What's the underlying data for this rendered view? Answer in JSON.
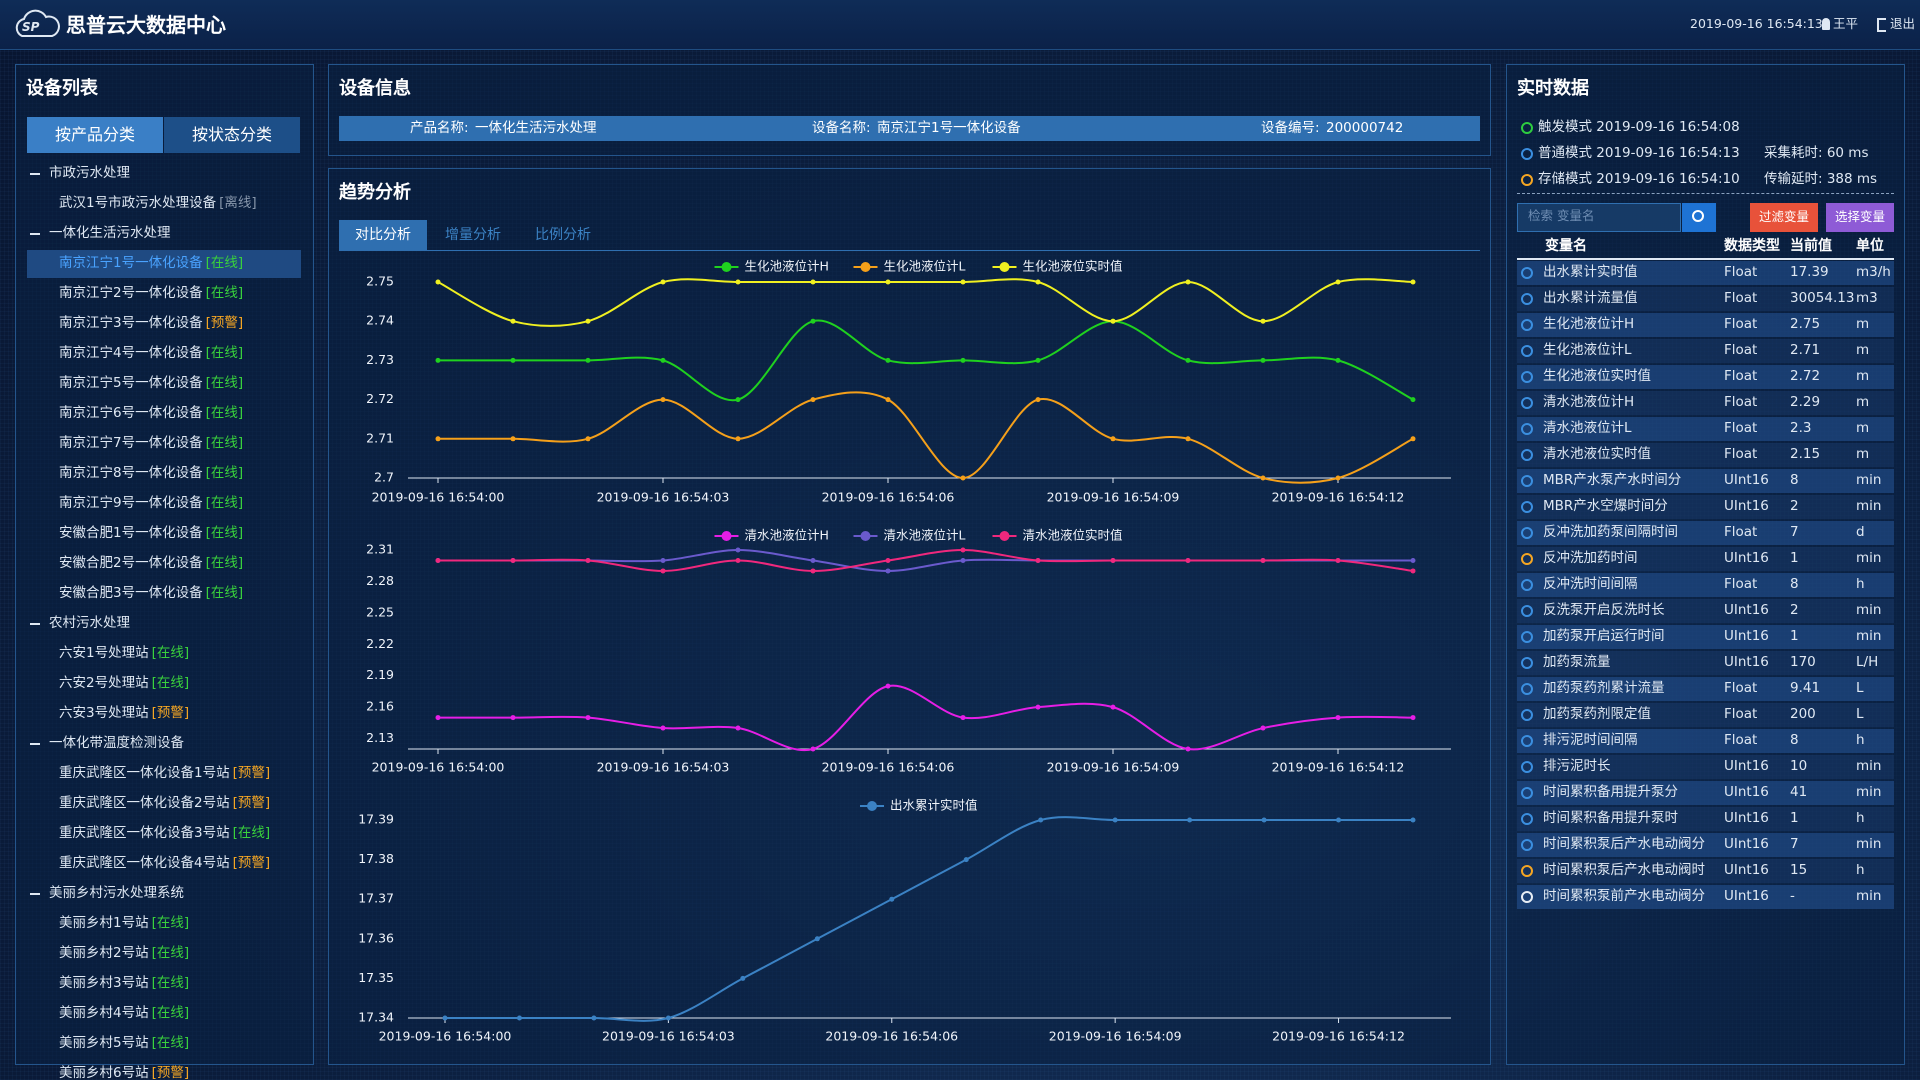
{
  "header": {
    "logo": "SP",
    "title": "思普云大数据中心",
    "datetime": "2019-09-16 16:54:13",
    "user": "王平",
    "logout": "退出"
  },
  "device_list": {
    "title": "设备列表",
    "tabs": [
      "按产品分类",
      "按状态分类"
    ],
    "groups": [
      {
        "name": "市政污水处理",
        "items": [
          {
            "name": "武汉1号市政污水处理设备",
            "status": "[离线]",
            "color": "#8796ab"
          }
        ]
      },
      {
        "name": "一体化生活污水处理",
        "items": [
          {
            "name": "南京江宁1号一体化设备",
            "status": "[在线]",
            "color": "#39d23c",
            "selected": true
          },
          {
            "name": "南京江宁2号一体化设备",
            "status": "[在线]",
            "color": "#39d23c"
          },
          {
            "name": "南京江宁3号一体化设备",
            "status": "[预警]",
            "color": "#f5a623"
          },
          {
            "name": "南京江宁4号一体化设备",
            "status": "[在线]",
            "color": "#39d23c"
          },
          {
            "name": "南京江宁5号一体化设备",
            "status": "[在线]",
            "color": "#39d23c"
          },
          {
            "name": "南京江宁6号一体化设备",
            "status": "[在线]",
            "color": "#39d23c"
          },
          {
            "name": "南京江宁7号一体化设备",
            "status": "[在线]",
            "color": "#39d23c"
          },
          {
            "name": "南京江宁8号一体化设备",
            "status": "[在线]",
            "color": "#39d23c"
          },
          {
            "name": "南京江宁9号一体化设备",
            "status": "[在线]",
            "color": "#39d23c"
          },
          {
            "name": "安徽合肥1号一体化设备",
            "status": "[在线]",
            "color": "#39d23c"
          },
          {
            "name": "安徽合肥2号一体化设备",
            "status": "[在线]",
            "color": "#39d23c"
          },
          {
            "name": "安徽合肥3号一体化设备",
            "status": "[在线]",
            "color": "#39d23c"
          }
        ]
      },
      {
        "name": "农村污水处理",
        "items": [
          {
            "name": "六安1号处理站",
            "status": "[在线]",
            "color": "#39d23c"
          },
          {
            "name": "六安2号处理站",
            "status": "[在线]",
            "color": "#39d23c"
          },
          {
            "name": "六安3号处理站",
            "status": "[预警]",
            "color": "#f5a623"
          }
        ]
      },
      {
        "name": "一体化带温度检测设备",
        "items": [
          {
            "name": "重庆武隆区一体化设备1号站",
            "status": "[预警]",
            "color": "#f5a623"
          },
          {
            "name": "重庆武隆区一体化设备2号站",
            "status": "[预警]",
            "color": "#f5a623"
          },
          {
            "name": "重庆武隆区一体化设备3号站",
            "status": "[在线]",
            "color": "#39d23c"
          },
          {
            "name": "重庆武隆区一体化设备4号站",
            "status": "[预警]",
            "color": "#f5a623"
          }
        ]
      },
      {
        "name": "美丽乡村污水处理系统",
        "items": [
          {
            "name": "美丽乡村1号站",
            "status": "[在线]",
            "color": "#39d23c"
          },
          {
            "name": "美丽乡村2号站",
            "status": "[在线]",
            "color": "#39d23c"
          },
          {
            "name": "美丽乡村3号站",
            "status": "[在线]",
            "color": "#39d23c"
          },
          {
            "name": "美丽乡村4号站",
            "status": "[在线]",
            "color": "#39d23c"
          },
          {
            "name": "美丽乡村5号站",
            "status": "[在线]",
            "color": "#39d23c"
          },
          {
            "name": "美丽乡村6号站",
            "status": "[预警]",
            "color": "#f5a623"
          }
        ]
      }
    ]
  },
  "device_info": {
    "title": "设备信息",
    "fields": [
      {
        "label": "产品名称:",
        "value": "一体化生活污水处理"
      },
      {
        "label": "设备名称:",
        "value": "南京江宁1号一体化设备"
      },
      {
        "label": "设备编号:",
        "value": "200000742"
      }
    ]
  },
  "trend": {
    "title": "趋势分析",
    "tabs": [
      "对比分析",
      "增量分析",
      "比例分析"
    ]
  },
  "chart_data": [
    {
      "type": "line",
      "smooth": true,
      "legend": "top",
      "grid": false,
      "categories": [
        "2019-09-16 16:54:00",
        null,
        null,
        "2019-09-16 16:54:03",
        null,
        null,
        "2019-09-16 16:54:06",
        null,
        null,
        "2019-09-16 16:54:09",
        null,
        null,
        "2019-09-16 16:54:12",
        null
      ],
      "ylim": [
        2.7,
        2.75
      ],
      "yticks": [
        2.7,
        2.71,
        2.72,
        2.73,
        2.74,
        2.75
      ],
      "series": [
        {
          "name": "生化池液位计H",
          "color": "#1fd11f",
          "values": [
            2.73,
            2.73,
            2.73,
            2.73,
            2.72,
            2.74,
            2.73,
            2.73,
            2.73,
            2.74,
            2.73,
            2.73,
            2.73,
            2.72
          ]
        },
        {
          "name": "生化池液位计L",
          "color": "#f5a01a",
          "values": [
            2.71,
            2.71,
            2.71,
            2.72,
            2.71,
            2.72,
            2.72,
            2.7,
            2.72,
            2.71,
            2.71,
            2.7,
            2.7,
            2.71
          ]
        },
        {
          "name": "生化池液位实时值",
          "color": "#f0f020",
          "values": [
            2.75,
            2.74,
            2.74,
            2.75,
            2.75,
            2.75,
            2.75,
            2.75,
            2.75,
            2.74,
            2.75,
            2.74,
            2.75,
            2.75
          ]
        }
      ]
    },
    {
      "type": "line",
      "smooth": true,
      "legend": "top",
      "grid": false,
      "categories": [
        "2019-09-16 16:54:00",
        null,
        null,
        "2019-09-16 16:54:03",
        null,
        null,
        "2019-09-16 16:54:06",
        null,
        null,
        "2019-09-16 16:54:09",
        null,
        null,
        "2019-09-16 16:54:12",
        null
      ],
      "ylim": [
        2.12,
        2.31
      ],
      "yticks": [
        2.13,
        2.16,
        2.19,
        2.22,
        2.25,
        2.28,
        2.31
      ],
      "series": [
        {
          "name": "清水池液位计H",
          "color": "#e61ee6",
          "values": [
            2.15,
            2.15,
            2.15,
            2.14,
            2.14,
            2.12,
            2.18,
            2.15,
            2.16,
            2.16,
            2.12,
            2.14,
            2.15,
            2.15
          ]
        },
        {
          "name": "清水池液位计L",
          "color": "#6a5acd",
          "values": [
            2.3,
            2.3,
            2.3,
            2.3,
            2.31,
            2.3,
            2.29,
            2.3,
            2.3,
            2.3,
            2.3,
            2.3,
            2.3,
            2.3
          ]
        },
        {
          "name": "清水池液位实时值",
          "color": "#f0287d",
          "values": [
            2.3,
            2.3,
            2.3,
            2.29,
            2.3,
            2.29,
            2.3,
            2.31,
            2.3,
            2.3,
            2.3,
            2.3,
            2.3,
            2.29
          ]
        }
      ]
    },
    {
      "type": "line",
      "smooth": true,
      "legend": "top",
      "grid": false,
      "categories": [
        "2019-09-16 16:54:00",
        null,
        null,
        "2019-09-16 16:54:03",
        null,
        null,
        "2019-09-16 16:54:06",
        null,
        null,
        "2019-09-16 16:54:09",
        null,
        null,
        "2019-09-16 16:54:12",
        null
      ],
      "ylim": [
        17.34,
        17.39
      ],
      "yticks": [
        17.34,
        17.35,
        17.36,
        17.37,
        17.38,
        17.39
      ],
      "series": [
        {
          "name": "出水累计实时值",
          "color": "#3b82c4",
          "values": [
            17.34,
            17.34,
            17.34,
            17.34,
            17.35,
            17.36,
            17.37,
            17.38,
            17.39,
            17.39,
            17.39,
            17.39,
            17.39,
            17.39
          ]
        }
      ]
    }
  ],
  "realtime": {
    "title": "实时数据",
    "modes": [
      {
        "text": "触发模式 2019-09-16 16:54:08",
        "icon": "#2ecc40"
      },
      {
        "text": "普通模式 2019-09-16 16:54:13",
        "icon": "#3b8fe0"
      },
      {
        "text": "存储模式 2019-09-16 16:54:10",
        "icon": "#f5a623"
      }
    ],
    "stats": [
      "采集耗时: 60 ms",
      "传输延时: 388 ms"
    ],
    "search_placeholder": "检索 变量名",
    "buttons": [
      {
        "text": "过滤变量",
        "color": "#e8523a"
      },
      {
        "text": "选择变量",
        "color": "#8e5bd6"
      }
    ],
    "headers": [
      "变量名",
      "数据类型",
      "当前值",
      "单位"
    ],
    "rows": [
      {
        "name": "出水累计实时值",
        "data_type": "Float",
        "value": 17.39,
        "unit": "m3/h",
        "icon": "#3b8fe0"
      },
      {
        "name": "出水累计流量值",
        "data_type": "Float",
        "value": 30054.13,
        "unit": "m3",
        "icon": "#3b8fe0"
      },
      {
        "name": "生化池液位计H",
        "data_type": "Float",
        "value": 2.75,
        "unit": "m",
        "icon": "#3b8fe0"
      },
      {
        "name": "生化池液位计L",
        "data_type": "Float",
        "value": 2.71,
        "unit": "m",
        "icon": "#3b8fe0"
      },
      {
        "name": "生化池液位实时值",
        "data_type": "Float",
        "value": 2.72,
        "unit": "m",
        "icon": "#3b8fe0"
      },
      {
        "name": "清水池液位计H",
        "data_type": "Float",
        "value": 2.29,
        "unit": "m",
        "icon": "#3b8fe0"
      },
      {
        "name": "清水池液位计L",
        "data_type": "Float",
        "value": 2.3,
        "unit": "m",
        "icon": "#3b8fe0"
      },
      {
        "name": "清水池液位实时值",
        "data_type": "Float",
        "value": 2.15,
        "unit": "m",
        "icon": "#3b8fe0"
      },
      {
        "name": "MBR产水泵产水时间分",
        "data_type": "UInt16",
        "value": 8,
        "unit": "min",
        "icon": "#3b8fe0"
      },
      {
        "name": "MBR产水空爆时间分",
        "data_type": "UInt16",
        "value": 2,
        "unit": "min",
        "icon": "#3b8fe0"
      },
      {
        "name": "反冲洗加药泵间隔时间",
        "data_type": "Float",
        "value": 7,
        "unit": "d",
        "icon": "#3b8fe0"
      },
      {
        "name": "反冲洗加药时间",
        "data_type": "UInt16",
        "value": 1,
        "unit": "min",
        "icon": "#f5a623"
      },
      {
        "name": "反冲洗时间间隔",
        "data_type": "Float",
        "value": 8,
        "unit": "h",
        "icon": "#3b8fe0"
      },
      {
        "name": "反洗泵开启反洗时长",
        "data_type": "UInt16",
        "value": 2,
        "unit": "min",
        "icon": "#3b8fe0"
      },
      {
        "name": "加药泵开启运行时间",
        "data_type": "UInt16",
        "value": 1,
        "unit": "min",
        "icon": "#3b8fe0"
      },
      {
        "name": "加药泵流量",
        "data_type": "UInt16",
        "value": 170,
        "unit": "L/H",
        "icon": "#3b8fe0"
      },
      {
        "name": "加药泵药剂累计流量",
        "data_type": "Float",
        "value": 9.41,
        "unit": "L",
        "icon": "#3b8fe0"
      },
      {
        "name": "加药泵药剂限定值",
        "data_type": "Float",
        "value": 200,
        "unit": "L",
        "icon": "#3b8fe0"
      },
      {
        "name": "排污泥时间间隔",
        "data_type": "Float",
        "value": 8,
        "unit": "h",
        "icon": "#3b8fe0"
      },
      {
        "name": "排污泥时长",
        "data_type": "UInt16",
        "value": 10,
        "unit": "min",
        "icon": "#3b8fe0"
      },
      {
        "name": "时间累积备用提升泵分",
        "data_type": "UInt16",
        "value": 41,
        "unit": "min",
        "icon": "#3b8fe0"
      },
      {
        "name": "时间累积备用提升泵时",
        "data_type": "UInt16",
        "value": 1,
        "unit": "h",
        "icon": "#3b8fe0"
      },
      {
        "name": "时间累积泵后产水电动阀分",
        "data_type": "UInt16",
        "value": 7,
        "unit": "min",
        "icon": "#3b8fe0"
      },
      {
        "name": "时间累积泵后产水电动阀时",
        "data_type": "UInt16",
        "value": 15,
        "unit": "h",
        "icon": "#f5a623"
      },
      {
        "name": "时间累积泵前产水电动阀分",
        "data_type": "UInt16",
        "value": "-",
        "unit": "min",
        "icon": "#e8eef5"
      }
    ]
  }
}
